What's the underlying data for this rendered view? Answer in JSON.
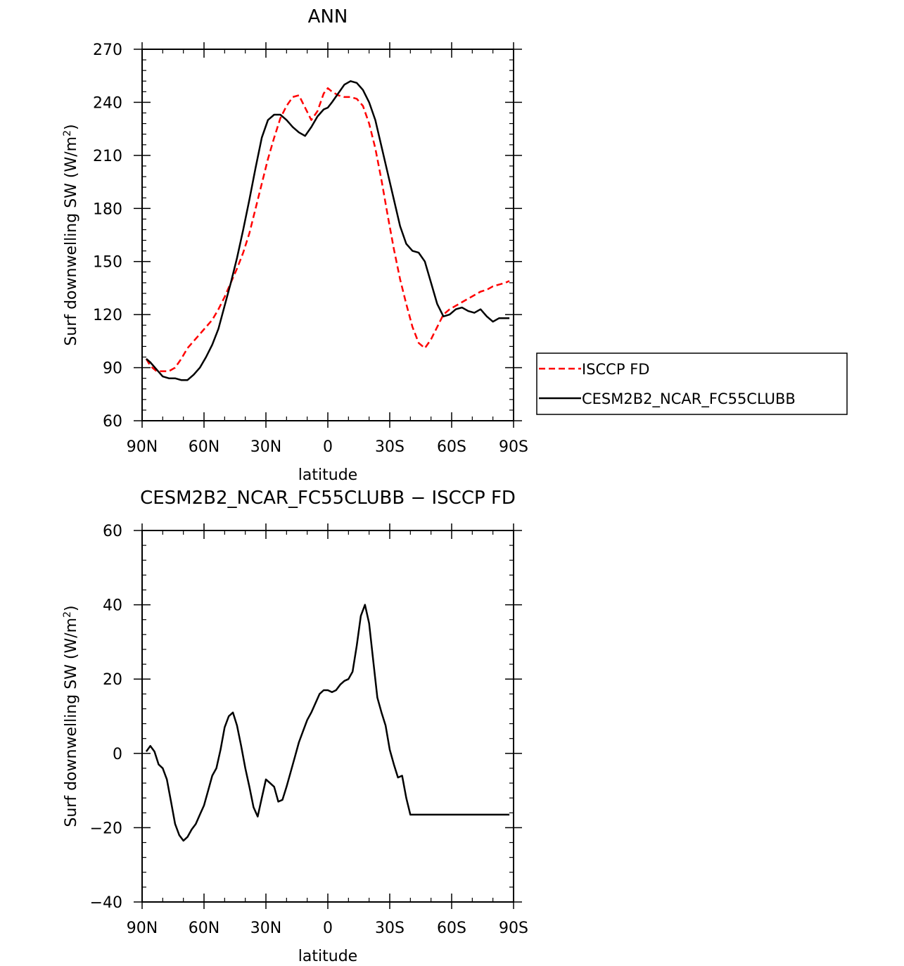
{
  "chart_data": [
    {
      "type": "line",
      "title": "ANN",
      "xlabel": "latitude",
      "ylabel": "Surf downwelling SW (W/m²)",
      "ylabel_parts": {
        "main": "Surf downwelling SW (W/m",
        "sup": "2",
        "close": ")"
      },
      "xlim": [
        90,
        -90
      ],
      "ylim": [
        60,
        270
      ],
      "xticks": [
        90,
        60,
        30,
        0,
        -30,
        -60,
        -90
      ],
      "xtick_labels": [
        "90N",
        "60N",
        "30N",
        "0",
        "30S",
        "60S",
        "90S"
      ],
      "yticks": [
        60,
        90,
        120,
        150,
        180,
        210,
        240,
        270
      ],
      "ytick_labels": [
        "60",
        "90",
        "120",
        "150",
        "180",
        "210",
        "240",
        "270"
      ],
      "legend_position": "outside-right",
      "series": [
        {
          "name": "ISCCP FD",
          "color": "#ff0000",
          "dashed": true,
          "x": [
            88,
            86,
            83,
            80,
            77,
            74,
            71,
            68,
            65,
            62,
            59,
            56,
            53,
            50,
            47,
            44,
            41,
            38,
            35,
            32,
            29,
            26,
            23,
            20,
            17,
            14,
            11,
            8,
            5,
            2,
            0,
            -2,
            -5,
            -8,
            -11,
            -14,
            -17,
            -20,
            -23,
            -26,
            -29,
            -32,
            -35,
            -38,
            -41,
            -44,
            -47,
            -50,
            -53,
            -56,
            -59,
            -62,
            -65,
            -68,
            -71,
            -74,
            -77,
            -80,
            -83,
            -86,
            -88
          ],
          "y": [
            95,
            91,
            88,
            88,
            88,
            90,
            95,
            101,
            105,
            109,
            113,
            117,
            123,
            130,
            138,
            146,
            155,
            166,
            180,
            194,
            208,
            220,
            231,
            238,
            243,
            244,
            237,
            230,
            235,
            245,
            248,
            246,
            244,
            243,
            243,
            242,
            238,
            228,
            214,
            196,
            176,
            157,
            140,
            126,
            113,
            104,
            101,
            106,
            113,
            120,
            123,
            125,
            127,
            129,
            131,
            133,
            134,
            136,
            137,
            138,
            139
          ]
        },
        {
          "name": "CESM2B2_NCAR_FC55CLUBB",
          "color": "#000000",
          "dashed": false,
          "x": [
            88,
            86,
            83,
            80,
            77,
            74,
            71,
            68,
            65,
            62,
            59,
            56,
            53,
            50,
            47,
            44,
            41,
            38,
            35,
            32,
            29,
            26,
            23,
            20,
            17,
            14,
            11,
            8,
            5,
            2,
            0,
            -2,
            -5,
            -8,
            -11,
            -14,
            -17,
            -20,
            -23,
            -26,
            -29,
            -32,
            -35,
            -38,
            -41,
            -44,
            -47,
            -50,
            -53,
            -56,
            -59,
            -62,
            -65,
            -68,
            -71,
            -74,
            -77,
            -80,
            -83,
            -86,
            -88
          ],
          "y": [
            95,
            93,
            89,
            85,
            84,
            84,
            83,
            83,
            86,
            90,
            96,
            103,
            112,
            125,
            138,
            152,
            168,
            185,
            203,
            220,
            230,
            233,
            233,
            230,
            226,
            223,
            221,
            226,
            232,
            236,
            237,
            240,
            245,
            250,
            252,
            251,
            247,
            240,
            230,
            215,
            200,
            185,
            170,
            160,
            156,
            155,
            150,
            138,
            126,
            119,
            120,
            123,
            124,
            122,
            121,
            123,
            119,
            116,
            118,
            118,
            118
          ]
        }
      ]
    },
    {
      "type": "line",
      "title": "CESM2B2_NCAR_FC55CLUBB − ISCCP FD",
      "xlabel": "latitude",
      "ylabel": "Surf downwelling SW (W/m²)",
      "ylabel_parts": {
        "main": "Surf downwelling SW (W/m",
        "sup": "2",
        "close": ")"
      },
      "xlim": [
        90,
        -90
      ],
      "ylim": [
        -40,
        60
      ],
      "xticks": [
        90,
        60,
        30,
        0,
        -30,
        -60,
        -90
      ],
      "xtick_labels": [
        "90N",
        "60N",
        "30N",
        "0",
        "30S",
        "60S",
        "90S"
      ],
      "yticks": [
        -40,
        -20,
        0,
        20,
        40,
        60
      ],
      "ytick_labels": [
        "−40",
        "−20",
        "0",
        "20",
        "40",
        "60"
      ],
      "series": [
        {
          "color": "#000000",
          "dashed": false,
          "x": [
            88,
            86,
            84,
            82,
            80,
            78,
            76,
            74,
            72,
            70,
            68,
            66,
            64,
            62,
            60,
            58,
            56,
            54,
            52,
            50,
            48,
            46,
            44,
            42,
            40,
            38,
            36,
            34,
            32,
            30,
            28,
            26,
            24,
            22,
            20,
            18,
            16,
            14,
            12,
            10,
            8,
            6,
            4,
            2,
            0,
            -2,
            -4,
            -6,
            -8,
            -10,
            -12,
            -14,
            -16,
            -18,
            -20,
            -22,
            -24,
            -26,
            -28,
            -30,
            -32,
            -34,
            -36,
            -38,
            -40,
            -42,
            -44,
            -46,
            -48,
            -50,
            -52,
            -54,
            -56,
            -58,
            -60,
            -62,
            -64,
            -66,
            -68,
            -70,
            -72,
            -74,
            -76,
            -78,
            -80,
            -82,
            -84,
            -86,
            -88
          ],
          "y": [
            0.5,
            2,
            0.5,
            -3,
            -4,
            -7,
            -13,
            -19,
            -22,
            -23.5,
            -22.5,
            -20.5,
            -19,
            -16.5,
            -14,
            -10,
            -6,
            -4,
            1,
            7,
            10,
            11,
            7.5,
            2,
            -4,
            -9,
            -14.5,
            -17,
            -12,
            -7,
            -8,
            -9,
            -13,
            -12.5,
            -9,
            -5,
            -1,
            3,
            6,
            9,
            11,
            13.5,
            16,
            17,
            17,
            16.5,
            17,
            18.5,
            19.5,
            20,
            22,
            29,
            37,
            40,
            35,
            25,
            15,
            11,
            7.5,
            1,
            -3,
            -6.5,
            -6,
            -12,
            -16.5,
            -16.5,
            -16.5,
            -16.5,
            -16.5,
            -16.5,
            -16.5,
            -16.5,
            -16.5,
            -16.5,
            -16.5,
            -16.5,
            -16.5,
            -16.5,
            -16.5,
            -16.5,
            -16.5,
            -16.5,
            -16.5,
            -16.5,
            -16.5,
            -16.5,
            -16.5,
            -16.5,
            -16.5
          ]
        }
      ]
    }
  ]
}
